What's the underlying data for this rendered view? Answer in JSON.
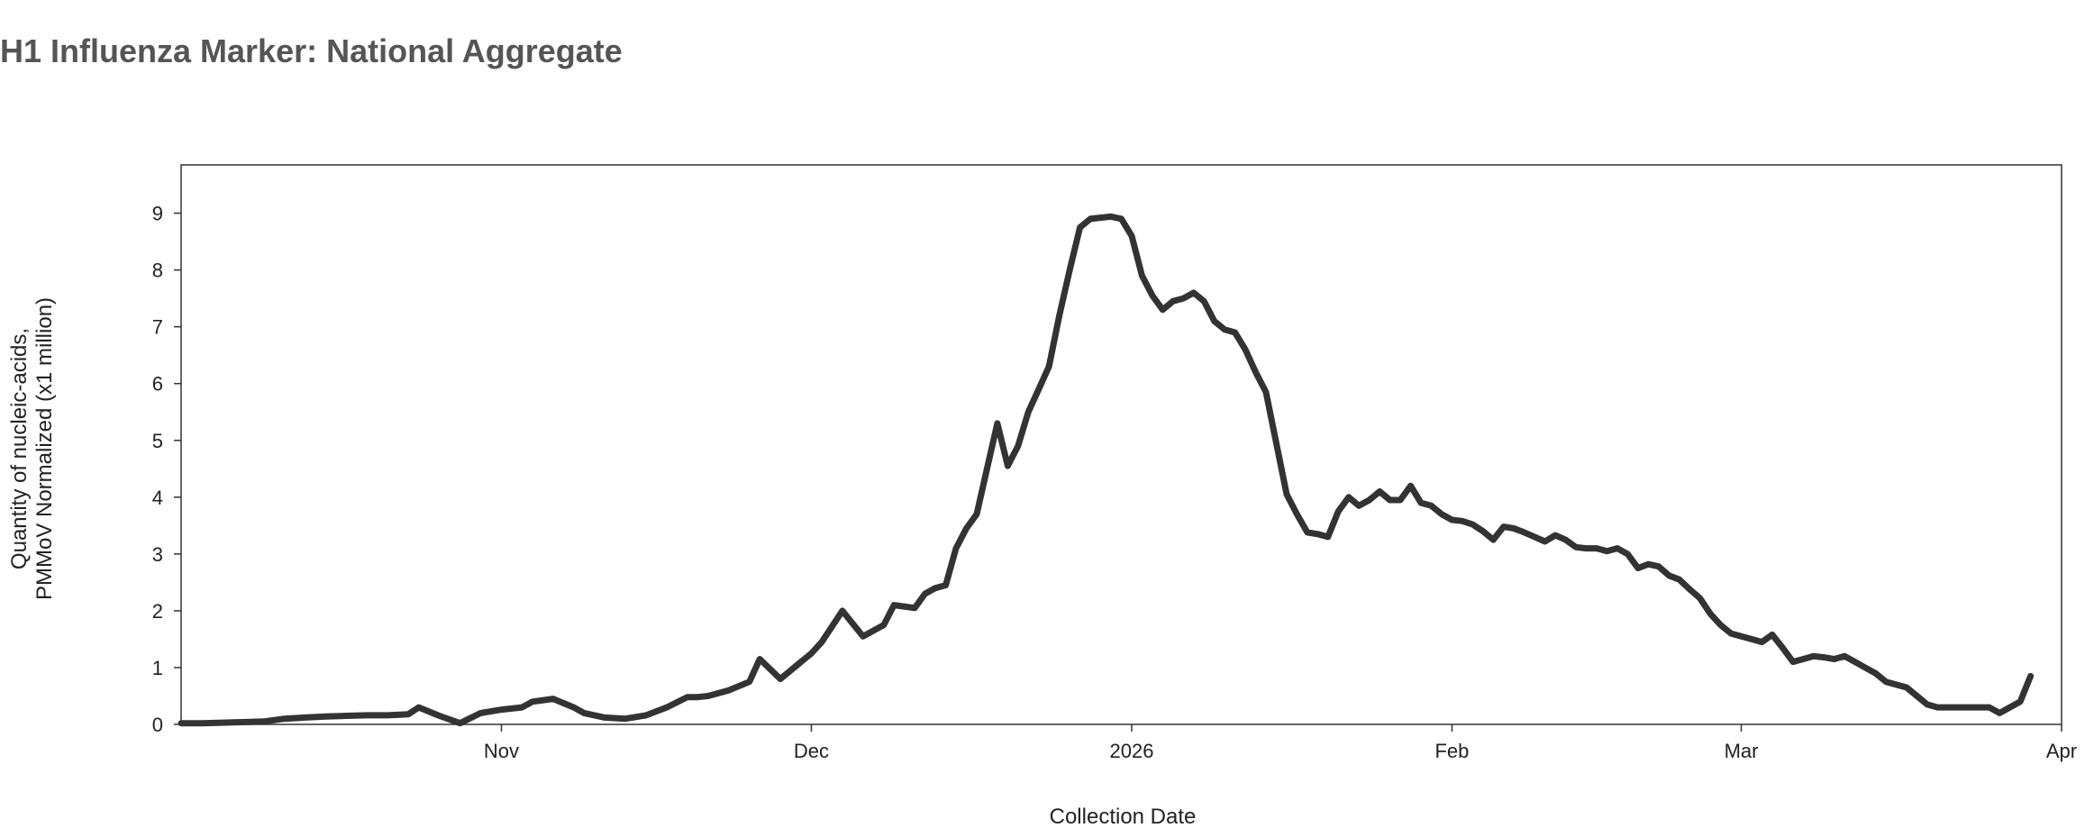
{
  "chart_data": {
    "type": "line",
    "title": "H1 Influenza Marker: National Aggregate",
    "xlabel": "Collection Date",
    "ylabel_lines": [
      "Quantity of nucleic-acids,",
      "PMMoV Normalized (x1 million)"
    ],
    "x_ticks": [
      {
        "label": "Nov",
        "date": "2025-11-01"
      },
      {
        "label": "Dec",
        "date": "2025-12-01"
      },
      {
        "label": "2026",
        "date": "2026-01-01"
      },
      {
        "label": "Feb",
        "date": "2026-02-01"
      },
      {
        "label": "Mar",
        "date": "2026-03-01"
      },
      {
        "label": "Apr",
        "date": "2026-04-01"
      }
    ],
    "y_ticks": [
      "0",
      "1",
      "2",
      "3",
      "4",
      "5",
      "6",
      "7",
      "8",
      "9"
    ],
    "xlim": [
      "2025-10-01",
      "2026-04-01"
    ],
    "ylim": [
      0,
      9.85
    ],
    "grid": false,
    "line_color": "#333333",
    "series": [
      {
        "x": [
          "2025-10-01",
          "2025-10-03",
          "2025-10-05",
          "2025-10-07",
          "2025-10-09",
          "2025-10-11",
          "2025-10-13",
          "2025-10-15",
          "2025-10-17",
          "2025-10-19",
          "2025-10-21",
          "2025-10-23",
          "2025-10-24",
          "2025-10-26",
          "2025-10-28",
          "2025-10-30",
          "2025-11-01",
          "2025-11-03",
          "2025-11-04",
          "2025-11-06",
          "2025-11-08",
          "2025-11-09",
          "2025-11-11",
          "2025-11-13",
          "2025-11-15",
          "2025-11-17",
          "2025-11-19",
          "2025-11-20",
          "2025-11-21",
          "2025-11-23",
          "2025-11-25",
          "2025-11-26",
          "2025-11-28",
          "2025-11-30",
          "2025-12-01",
          "2025-12-02",
          "2025-12-04",
          "2025-12-06",
          "2025-12-08",
          "2025-12-09",
          "2025-12-11",
          "2025-12-12",
          "2025-12-13",
          "2025-12-14",
          "2025-12-15",
          "2025-12-16",
          "2025-12-17",
          "2025-12-18",
          "2025-12-19",
          "2025-12-20",
          "2025-12-21",
          "2025-12-22",
          "2025-12-23",
          "2025-12-24",
          "2025-12-25",
          "2025-12-26",
          "2025-12-27",
          "2025-12-28",
          "2025-12-29",
          "2025-12-30",
          "2025-12-31",
          "2026-01-01",
          "2026-01-02",
          "2026-01-03",
          "2026-01-04",
          "2026-01-05",
          "2026-01-06",
          "2026-01-07",
          "2026-01-08",
          "2026-01-09",
          "2026-01-10",
          "2026-01-11",
          "2026-01-12",
          "2026-01-13",
          "2026-01-14",
          "2026-01-15",
          "2026-01-16",
          "2026-01-17",
          "2026-01-18",
          "2026-01-19",
          "2026-01-20",
          "2026-01-21",
          "2026-01-22",
          "2026-01-23",
          "2026-01-24",
          "2026-01-25",
          "2026-01-26",
          "2026-01-27",
          "2026-01-28",
          "2026-01-29",
          "2026-01-30",
          "2026-01-31",
          "2026-02-01",
          "2026-02-02",
          "2026-02-03",
          "2026-02-04",
          "2026-02-05",
          "2026-02-06",
          "2026-02-07",
          "2026-02-08",
          "2026-02-09",
          "2026-02-10",
          "2026-02-11",
          "2026-02-12",
          "2026-02-13",
          "2026-02-14",
          "2026-02-15",
          "2026-02-16",
          "2026-02-17",
          "2026-02-18",
          "2026-02-19",
          "2026-02-20",
          "2026-02-21",
          "2026-02-22",
          "2026-02-23",
          "2026-02-24",
          "2026-02-25",
          "2026-02-26",
          "2026-02-27",
          "2026-02-28",
          "2026-03-01",
          "2026-03-02",
          "2026-03-03",
          "2026-03-04",
          "2026-03-05",
          "2026-03-06",
          "2026-03-07",
          "2026-03-08",
          "2026-03-09",
          "2026-03-10",
          "2026-03-11",
          "2026-03-12",
          "2026-03-13",
          "2026-03-14",
          "2026-03-15",
          "2026-03-16",
          "2026-03-17",
          "2026-03-18",
          "2026-03-19",
          "2026-03-20",
          "2026-03-21",
          "2026-03-22",
          "2026-03-23",
          "2026-03-24",
          "2026-03-25",
          "2026-03-26",
          "2026-03-27",
          "2026-03-28",
          "2026-03-29"
        ],
        "values": [
          0.02,
          0.02,
          0.03,
          0.04,
          0.05,
          0.1,
          0.12,
          0.14,
          0.15,
          0.16,
          0.16,
          0.18,
          0.3,
          0.15,
          0.02,
          0.2,
          0.26,
          0.3,
          0.4,
          0.45,
          0.3,
          0.2,
          0.12,
          0.1,
          0.16,
          0.3,
          0.48,
          0.48,
          0.5,
          0.6,
          0.75,
          1.15,
          0.8,
          1.1,
          1.25,
          1.45,
          2.0,
          1.55,
          1.75,
          2.1,
          2.05,
          2.3,
          2.4,
          2.45,
          3.1,
          3.45,
          3.7,
          4.5,
          5.3,
          4.55,
          4.9,
          5.5,
          5.9,
          6.3,
          7.2,
          8.0,
          8.75,
          8.9,
          8.92,
          8.94,
          8.9,
          8.6,
          7.9,
          7.55,
          7.3,
          7.45,
          7.5,
          7.6,
          7.45,
          7.1,
          6.95,
          6.9,
          6.6,
          6.2,
          5.85,
          4.95,
          4.05,
          3.7,
          3.38,
          3.35,
          3.3,
          3.75,
          4.0,
          3.85,
          3.95,
          4.1,
          3.95,
          3.95,
          4.2,
          3.9,
          3.85,
          3.7,
          3.6,
          3.58,
          3.52,
          3.4,
          3.25,
          3.48,
          3.45,
          3.38,
          3.3,
          3.22,
          3.33,
          3.25,
          3.12,
          3.1,
          3.1,
          3.05,
          3.1,
          3.0,
          2.75,
          2.82,
          2.78,
          2.62,
          2.55,
          2.38,
          2.22,
          1.95,
          1.75,
          1.6,
          1.55,
          1.5,
          1.45,
          1.58,
          1.35,
          1.1,
          1.15,
          1.2,
          1.18,
          1.15,
          1.2,
          1.1,
          1.0,
          0.9,
          0.75,
          0.7,
          0.65,
          0.5,
          0.35,
          0.3,
          0.3,
          0.3,
          0.3,
          0.3,
          0.3,
          0.2,
          0.3,
          0.4,
          0.85
        ]
      }
    ]
  }
}
